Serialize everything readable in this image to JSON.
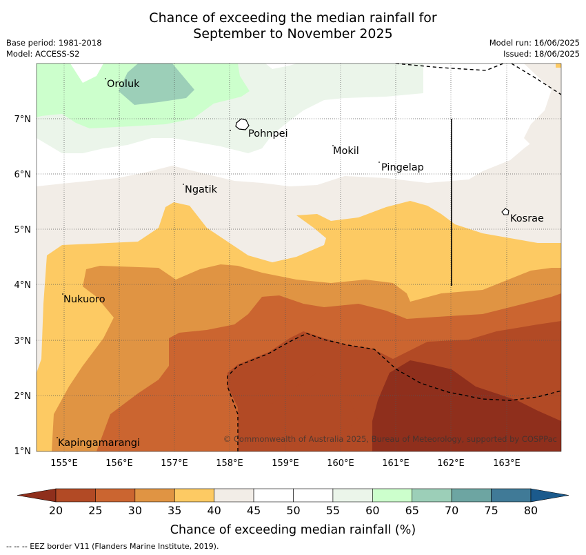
{
  "header": {
    "title_line1": "Chance of exceeding the median rainfall for",
    "title_line2": "September to November 2025",
    "base_period": "Base period: 1981-2018",
    "model": "Model: ACCESS-S2",
    "model_run": "Model run: 16/06/2025",
    "issued": "Issued: 18/06/2025"
  },
  "map": {
    "extent": {
      "lon_min": 154.5,
      "lon_max": 164.0,
      "lat_min": 1.0,
      "lat_max": 8.0
    },
    "lat_ticks": [
      {
        "label": "7°N"
      },
      {
        "label": "6°N"
      },
      {
        "label": "5°N"
      },
      {
        "label": "4°N"
      },
      {
        "label": "3°N"
      },
      {
        "label": "2°N"
      },
      {
        "label": "1°N"
      }
    ],
    "lon_ticks": [
      {
        "label": "155°E"
      },
      {
        "label": "156°E"
      },
      {
        "label": "157°E"
      },
      {
        "label": "158°E"
      },
      {
        "label": "159°E"
      },
      {
        "label": "160°E"
      },
      {
        "label": "161°E"
      },
      {
        "label": "162°E"
      },
      {
        "label": "163°E"
      }
    ],
    "places": [
      {
        "name": "Oroluk"
      },
      {
        "name": "Pohnpei"
      },
      {
        "name": "Mokil"
      },
      {
        "name": "Pingelap"
      },
      {
        "name": "Ngatik"
      },
      {
        "name": "Kosrae"
      },
      {
        "name": "Nukuoro"
      },
      {
        "name": "Kapingamarangi"
      }
    ],
    "copyright": "© Commonwealth of Australia 2025, Bureau of Meteorology, supported by COSPPac"
  },
  "colorbar": {
    "title": "Chance of exceeding median rainfall (%)",
    "labels": [
      "20",
      "25",
      "30",
      "35",
      "40",
      "45",
      "50",
      "55",
      "60",
      "65",
      "70",
      "75",
      "80"
    ],
    "colors": [
      "#8f2f1c",
      "#b24a25",
      "#cb6530",
      "#e09443",
      "#fdca63",
      "#f2ede7",
      "#ffffff",
      "#ffffff",
      "#ebf5ea",
      "#ccffcc",
      "#9ccfb8",
      "#6da5a2",
      "#407a97",
      "#1b5a8c"
    ]
  },
  "footer": {
    "legend_text": "--  --  -- EEZ border V11 (Flanders Marine Institute, 2019)."
  }
}
